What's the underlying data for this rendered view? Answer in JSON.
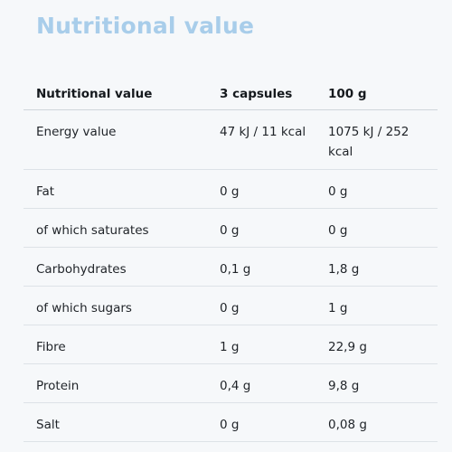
{
  "title": "Nutritional value",
  "table": {
    "headers": [
      "Nutritional value",
      "3 capsules",
      "100 g"
    ],
    "rows": [
      {
        "name": "Energy value",
        "per_serving": "47 kJ / 11 kcal",
        "per_100g": "1075 kJ / 252 kcal"
      },
      {
        "name": "Fat",
        "per_serving": "0 g",
        "per_100g": "0 g"
      },
      {
        "name": "of which saturates",
        "per_serving": "0 g",
        "per_100g": "0 g"
      },
      {
        "name": "Carbohydrates",
        "per_serving": "0,1 g",
        "per_100g": "1,8 g"
      },
      {
        "name": "of which sugars",
        "per_serving": "0 g",
        "per_100g": "1 g"
      },
      {
        "name": "Fibre",
        "per_serving": "1 g",
        "per_100g": "22,9 g"
      },
      {
        "name": "Protein",
        "per_serving": "0,4 g",
        "per_100g": "9,8 g"
      },
      {
        "name": "Salt",
        "per_serving": "0 g",
        "per_100g": "0,08 g"
      }
    ]
  }
}
